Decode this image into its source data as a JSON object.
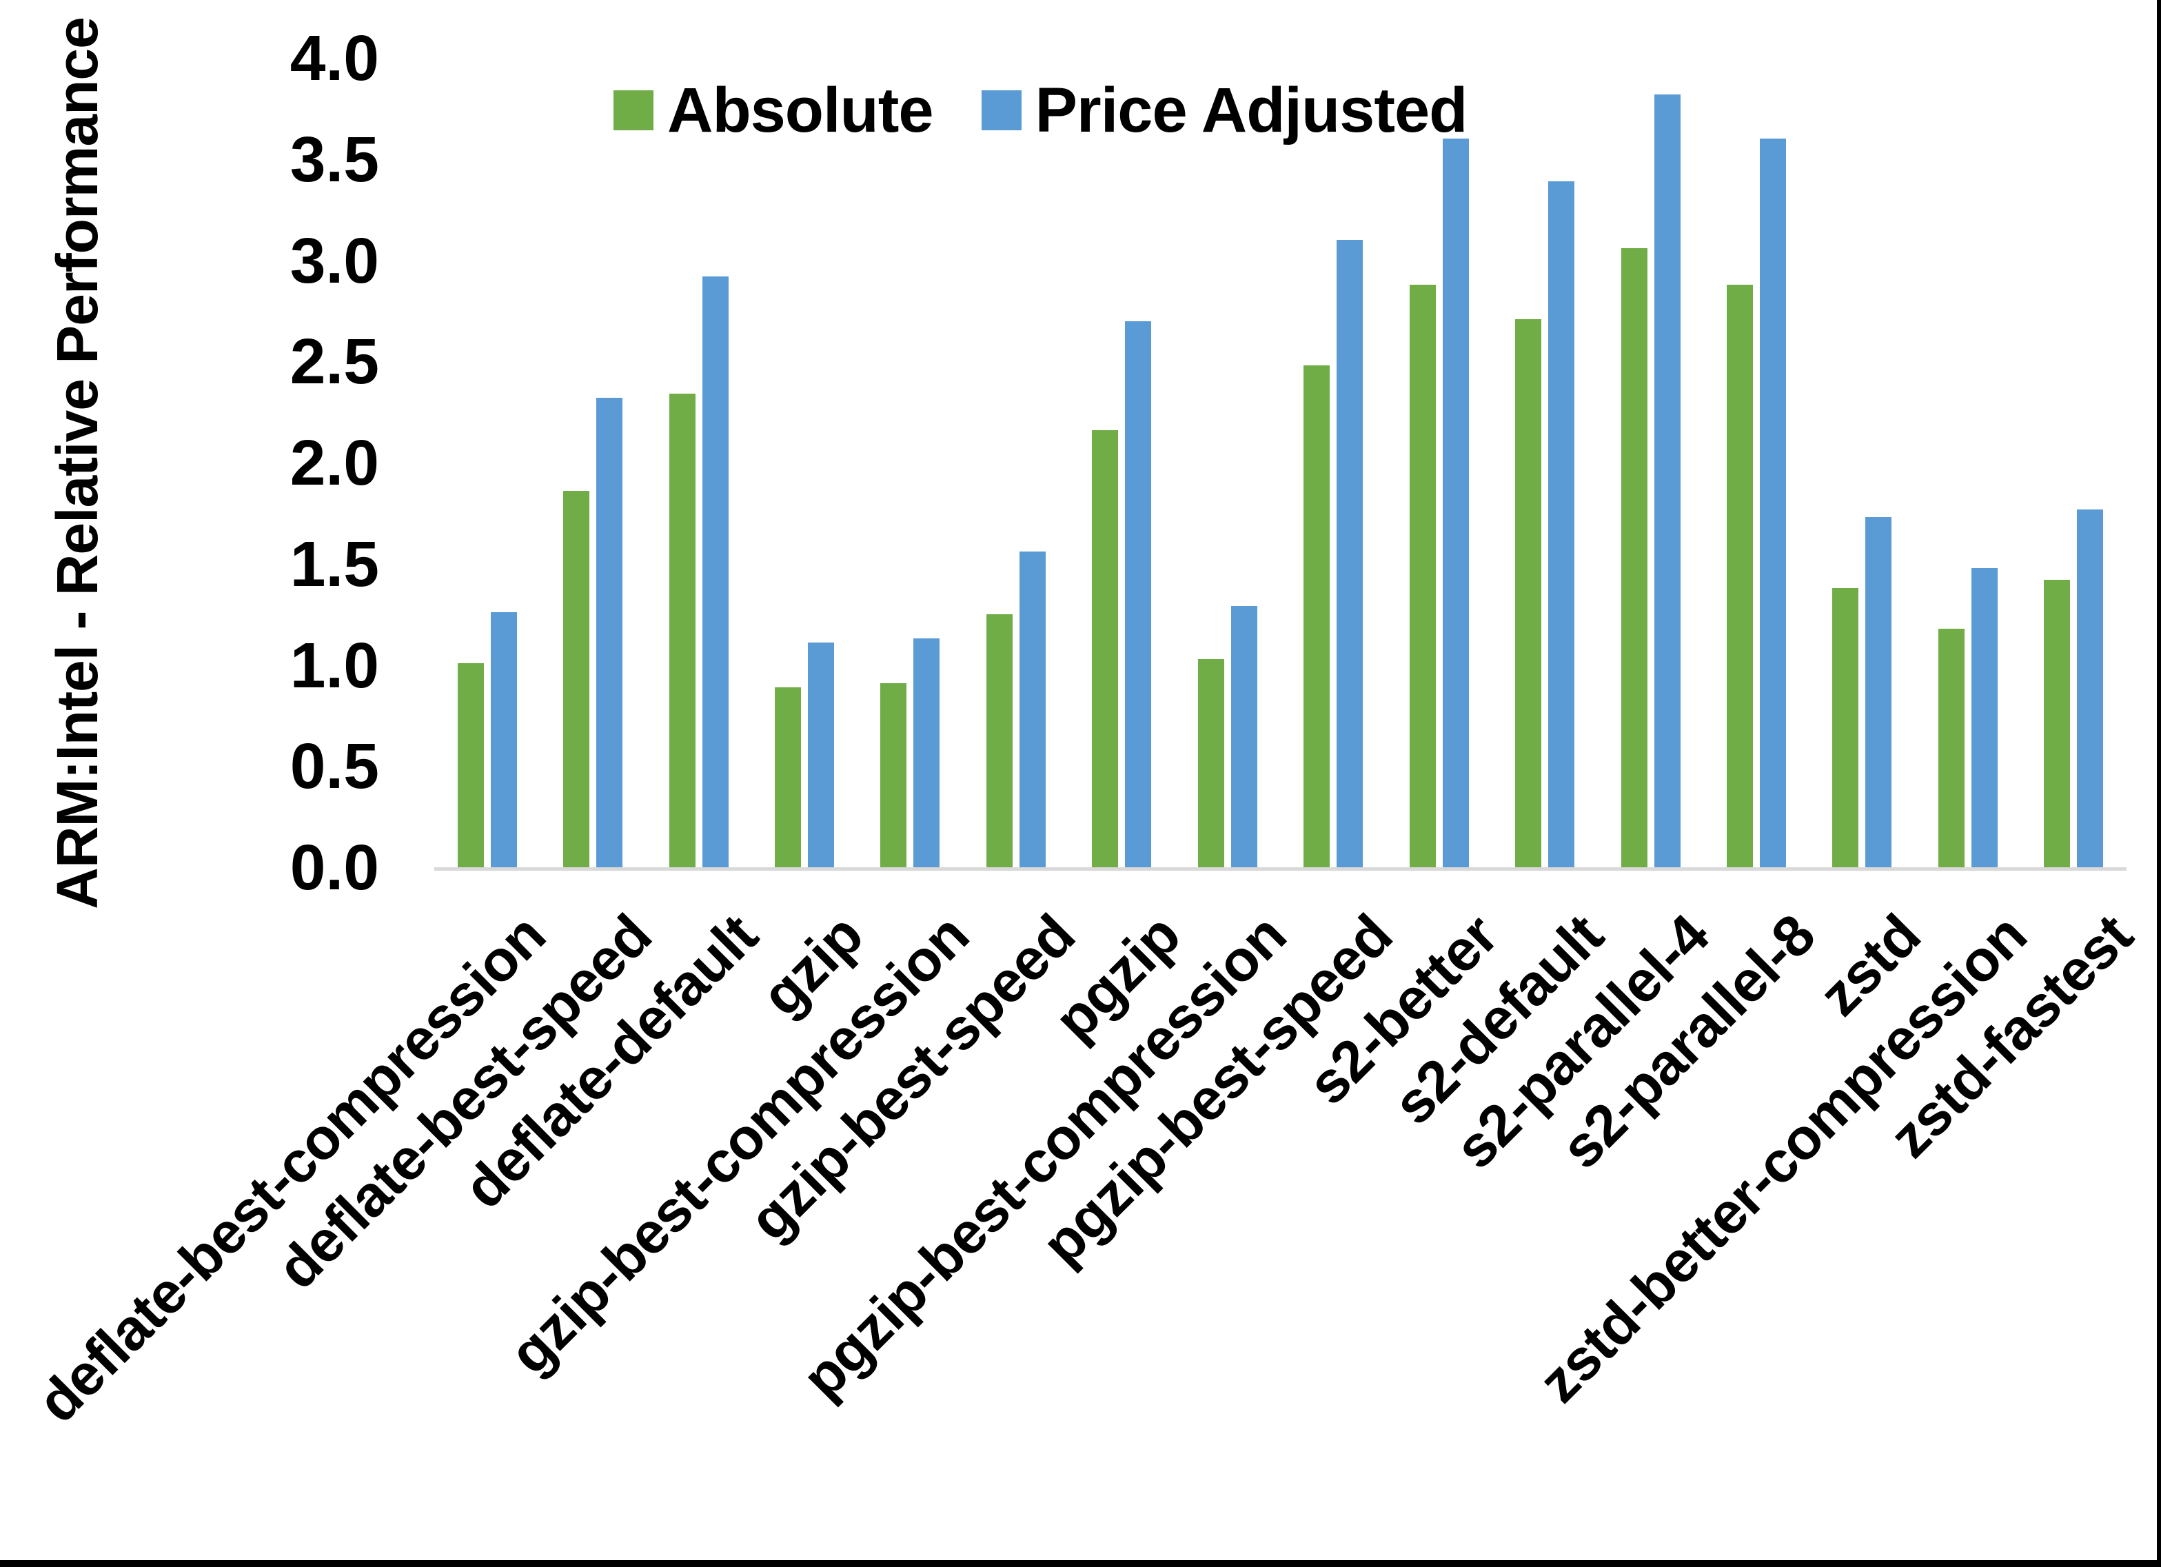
{
  "colors": {
    "absolute_series": "#70AD47",
    "price_adjusted_series": "#5B9BD5",
    "axis_line": "#D9D9D9",
    "text": "#000000",
    "frame": "#000000",
    "background": "#FFFFFF"
  },
  "legend": {
    "absolute_label": "Absolute",
    "price_adjusted_label": "Price Adjusted"
  },
  "chart_data": {
    "type": "bar",
    "title": "",
    "xlabel": "",
    "ylabel": "ARM:Intel - Relative Performance",
    "ylim": [
      0.0,
      4.0
    ],
    "ytick_step": 0.5,
    "yticks": [
      "0.0",
      "0.5",
      "1.0",
      "1.5",
      "2.0",
      "2.5",
      "3.0",
      "3.5",
      "4.0"
    ],
    "grid": false,
    "legend_position": "top-center",
    "categories": [
      "deflate-best-compression",
      "deflate-best-speed",
      "deflate-default",
      "gzip",
      "gzip-best-compression",
      "gzip-best-speed",
      "pgzip",
      "pgzip-best-compression",
      "pgzip-best-speed",
      "s2-better",
      "s2-default",
      "s2-parallel-4",
      "s2-parallel-8",
      "zstd",
      "zstd-better-compression",
      "zstd-fastest"
    ],
    "series": [
      {
        "name": "Absolute",
        "color": "#70AD47",
        "values": [
          1.01,
          1.86,
          2.34,
          0.89,
          0.91,
          1.25,
          2.16,
          1.03,
          2.48,
          2.88,
          2.71,
          3.06,
          2.88,
          1.38,
          1.18,
          1.42
        ]
      },
      {
        "name": "Price Adjusted",
        "color": "#5B9BD5",
        "values": [
          1.26,
          2.32,
          2.92,
          1.11,
          1.13,
          1.56,
          2.7,
          1.29,
          3.1,
          3.6,
          3.39,
          3.82,
          3.6,
          1.73,
          1.48,
          1.77
        ]
      }
    ]
  }
}
